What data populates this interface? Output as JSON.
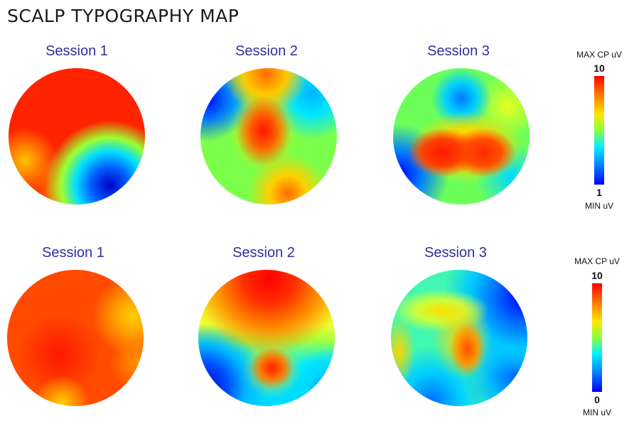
{
  "title": "SCALP TYPOGRAPHY MAP",
  "rows": [
    {
      "sessions": [
        {
          "label": "Session 1"
        },
        {
          "label": "Session 2"
        },
        {
          "label": "Session 3"
        }
      ],
      "scale": {
        "title": "MAX CP uV",
        "max": "10",
        "min": "1",
        "min_label": "MIN uV"
      }
    },
    {
      "sessions": [
        {
          "label": "Session 1"
        },
        {
          "label": "Session 2"
        },
        {
          "label": "Session 3"
        }
      ],
      "scale": {
        "title": "MAX CP uV",
        "max": "10",
        "min": "0",
        "min_label": "MIN uV"
      }
    }
  ],
  "colors": {
    "low": "#0000ff",
    "mid": "#7cff4a",
    "high": "#ff0000",
    "label": "#2f2f9e"
  }
}
